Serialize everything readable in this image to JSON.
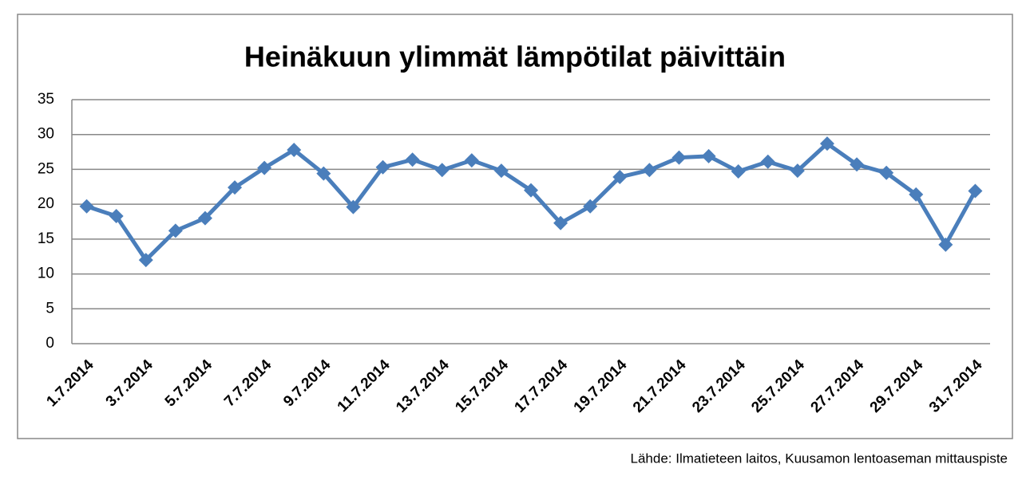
{
  "chart_data": {
    "type": "line",
    "title": "Heinäkuun ylimmät lämpötilat päivittäin",
    "source": "Lähde: Ilmatieteen laitos, Kuusamon lentoaseman mittauspiste",
    "categories": [
      "1.7.2014",
      null,
      "3.7.2014",
      null,
      "5.7.2014",
      null,
      "7.7.2014",
      null,
      "9.7.2014",
      null,
      "11.7.2014",
      null,
      "13.7.2014",
      null,
      "15.7.2014",
      null,
      "17.7.2014",
      null,
      "19.7.2014",
      null,
      "21.7.2014",
      null,
      "23.7.2014",
      null,
      "25.7.2014",
      null,
      "27.7.2014",
      null,
      "29.7.2014",
      null,
      "31.7.2014"
    ],
    "values": [
      19.7,
      18.3,
      12.0,
      16.2,
      18.0,
      22.4,
      25.2,
      27.8,
      24.4,
      19.6,
      25.3,
      26.4,
      24.9,
      26.3,
      24.8,
      22.0,
      17.3,
      19.7,
      23.9,
      24.9,
      26.7,
      26.9,
      24.7,
      26.1,
      24.8,
      28.7,
      25.7,
      24.5,
      21.4,
      14.2,
      21.9
    ],
    "color": "#4a7ebb",
    "ylim": [
      0,
      35
    ],
    "yticks": [
      0,
      5,
      10,
      15,
      20,
      25,
      30,
      35
    ],
    "grid": true
  }
}
